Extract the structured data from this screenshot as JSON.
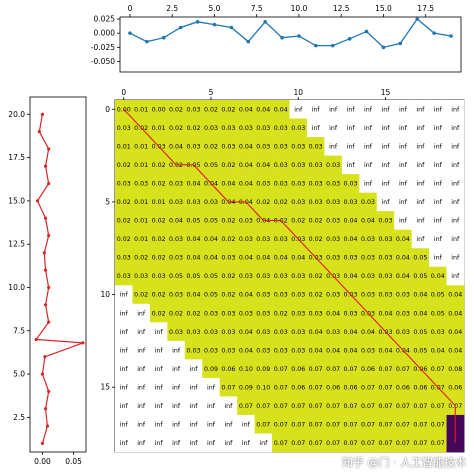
{
  "watermark": "知乎 @门 · 人工智能技术",
  "chart_data": [
    {
      "name": "top-series",
      "type": "line",
      "x": [
        0,
        1,
        2,
        3,
        4,
        5,
        6,
        7,
        8,
        9,
        10,
        11,
        12,
        13,
        14,
        15,
        16,
        17,
        18,
        19
      ],
      "y": [
        0.0,
        -0.015,
        -0.008,
        0.01,
        0.02,
        0.015,
        0.01,
        -0.015,
        0.02,
        -0.008,
        -0.005,
        -0.022,
        -0.022,
        -0.01,
        0.003,
        -0.025,
        -0.018,
        0.025,
        0.0,
        -0.005
      ],
      "xlim": [
        0,
        19
      ],
      "ylim": [
        -0.065,
        0.025
      ],
      "xticks": [
        0,
        2.5,
        5.0,
        7.5,
        10.0,
        12.5,
        15.0,
        17.5
      ],
      "yticks": [
        0.025,
        0.0,
        -0.025,
        -0.05
      ],
      "color": "#1f77b4"
    },
    {
      "name": "left-series",
      "type": "line",
      "x": [
        0.0,
        0.008,
        0.005,
        0.01,
        0.0,
        0.004,
        0.065,
        -0.01,
        0.01,
        0.005,
        0.01,
        0.005,
        0.003,
        0.01,
        0.005,
        -0.008,
        0.01,
        0.005,
        0.01,
        -0.005,
        0.0
      ],
      "y": [
        1,
        2,
        3,
        4,
        5,
        6,
        6.8,
        7,
        8,
        9,
        10,
        11,
        12,
        13,
        14,
        15,
        16,
        17,
        18,
        19,
        20
      ],
      "ylim": [
        0.5,
        21
      ],
      "xlim": [
        -0.02,
        0.07
      ],
      "yticks": [
        2.5,
        5.0,
        7.5,
        10.0,
        12.5,
        15.0,
        17.5,
        20.0
      ],
      "xticks": [
        0.0,
        0.05
      ],
      "xtick_labels": [
        "0.00",
        "0.05"
      ],
      "color": "#d62728"
    },
    {
      "name": "cost-matrix",
      "type": "heatmap",
      "rows": 19,
      "cols": 20,
      "xticks": [
        0,
        5,
        10,
        15
      ],
      "yticks": [
        0,
        5,
        10,
        15
      ],
      "colors": {
        "low": "#d7e21c",
        "dark": "#44085a",
        "inf": "#ffffff"
      },
      "row_labels": [
        [
          "0.00",
          "0.01",
          "0.00",
          "0.02",
          "0.03",
          "0.02",
          "0.02",
          "0.04",
          "0.04",
          "0.04",
          "inf",
          "inf",
          "inf",
          "inf",
          "inf",
          "inf",
          "inf",
          "inf",
          "inf",
          "inf"
        ],
        [
          "0.03",
          "0.02",
          "0.01",
          "0.02",
          "0.02",
          "0.03",
          "0.03",
          "0.03",
          "0.03",
          "0.03",
          "0.03",
          "inf",
          "inf",
          "inf",
          "inf",
          "inf",
          "inf",
          "inf",
          "inf",
          "inf"
        ],
        [
          "0.01",
          "0.01",
          "0.03",
          "0.04",
          "0.03",
          "0.02",
          "0.03",
          "0.04",
          "0.03",
          "0.03",
          "0.03",
          "0.03",
          "inf",
          "inf",
          "inf",
          "inf",
          "inf",
          "inf",
          "inf",
          "inf"
        ],
        [
          "0.02",
          "0.01",
          "0.02",
          "0.02",
          "0.05",
          "0.05",
          "0.02",
          "0.04",
          "0.04",
          "0.03",
          "0.03",
          "0.03",
          "0.03",
          "inf",
          "inf",
          "inf",
          "inf",
          "inf",
          "inf",
          "inf"
        ],
        [
          "0.03",
          "0.03",
          "0.02",
          "0.03",
          "0.04",
          "0.04",
          "0.04",
          "0.04",
          "0.03",
          "0.03",
          "0.03",
          "0.03",
          "0.03",
          "0.03",
          "inf",
          "inf",
          "inf",
          "inf",
          "inf",
          "inf"
        ],
        [
          "0.02",
          "0.01",
          "0.01",
          "0.03",
          "0.03",
          "0.03",
          "0.04",
          "0.04",
          "0.02",
          "0.02",
          "0.03",
          "0.03",
          "0.03",
          "0.03",
          "0.03",
          "inf",
          "inf",
          "inf",
          "inf",
          "inf"
        ],
        [
          "0.02",
          "0.01",
          "0.02",
          "0.04",
          "0.05",
          "0.05",
          "0.02",
          "0.03",
          "0.04",
          "0.02",
          "0.02",
          "0.02",
          "0.03",
          "0.04",
          "0.04",
          "0.03",
          "inf",
          "inf",
          "inf",
          "inf"
        ],
        [
          "0.02",
          "0.01",
          "0.02",
          "0.03",
          "0.04",
          "0.04",
          "0.02",
          "0.03",
          "0.03",
          "0.03",
          "0.03",
          "0.02",
          "0.03",
          "0.04",
          "0.03",
          "0.03",
          "0.04",
          "inf",
          "inf",
          "inf"
        ],
        [
          "0.03",
          "0.02",
          "0.02",
          "0.03",
          "0.04",
          "0.04",
          "0.03",
          "0.04",
          "0.04",
          "0.04",
          "0.04",
          "0.03",
          "0.03",
          "0.03",
          "0.03",
          "0.03",
          "0.04",
          "0.05",
          "inf",
          "inf"
        ],
        [
          "0.03",
          "0.03",
          "0.03",
          "0.05",
          "0.05",
          "0.05",
          "0.02",
          "0.03",
          "0.03",
          "0.03",
          "0.03",
          "0.02",
          "0.03",
          "0.04",
          "0.03",
          "0.03",
          "0.04",
          "0.05",
          "0.04",
          "inf"
        ],
        [
          "inf",
          "0.02",
          "0.02",
          "0.03",
          "0.04",
          "0.05",
          "0.02",
          "0.04",
          "0.03",
          "0.03",
          "0.03",
          "0.02",
          "0.03",
          "0.03",
          "0.03",
          "0.03",
          "0.03",
          "0.04",
          "0.05",
          "0.04"
        ],
        [
          "inf",
          "inf",
          "0.02",
          "0.02",
          "0.02",
          "0.03",
          "0.03",
          "0.03",
          "0.03",
          "0.02",
          "0.03",
          "0.03",
          "0.04",
          "0.03",
          "0.03",
          "0.04",
          "0.03",
          "0.04",
          "0.05",
          "0.04"
        ],
        [
          "inf",
          "inf",
          "inf",
          "0.03",
          "0.03",
          "0.03",
          "0.03",
          "0.04",
          "0.03",
          "0.03",
          "0.03",
          "0.04",
          "0.03",
          "0.04",
          "0.04",
          "0.03",
          "0.03",
          "0.05",
          "0.03",
          "0.04"
        ],
        [
          "inf",
          "inf",
          "inf",
          "inf",
          "0.03",
          "0.03",
          "0.03",
          "0.04",
          "0.03",
          "0.03",
          "0.03",
          "0.04",
          "0.04",
          "0.04",
          "0.03",
          "0.04",
          "0.04",
          "0.05",
          "0.04",
          "0.04"
        ],
        [
          "inf",
          "inf",
          "inf",
          "inf",
          "inf",
          "0.09",
          "0.06",
          "0.10",
          "0.09",
          "0.07",
          "0.06",
          "0.07",
          "0.07",
          "0.07",
          "0.06",
          "0.07",
          "0.07",
          "0.06",
          "0.07",
          "0.08"
        ],
        [
          "inf",
          "inf",
          "inf",
          "inf",
          "inf",
          "inf",
          "0.07",
          "0.09",
          "0.10",
          "0.07",
          "0.06",
          "0.07",
          "0.06",
          "0.06",
          "0.07",
          "0.07",
          "0.06",
          "0.06",
          "0.07",
          "0.06"
        ],
        [
          "inf",
          "inf",
          "inf",
          "inf",
          "inf",
          "inf",
          "inf",
          "0.07",
          "0.07",
          "0.07",
          "0.07",
          "0.07",
          "0.07",
          "0.07",
          "0.07",
          "0.07",
          "0.07",
          "0.07",
          "0.07",
          "0.07"
        ],
        [
          "inf",
          "inf",
          "inf",
          "inf",
          "inf",
          "inf",
          "inf",
          "inf",
          "0.07",
          "0.07",
          "0.07",
          "0.07",
          "0.07",
          "0.07",
          "0.07",
          "0.07",
          "0.07",
          "0.07",
          "0.07",
          "0.07"
        ],
        [
          "inf",
          "inf",
          "inf",
          "inf",
          "inf",
          "inf",
          "inf",
          "inf",
          "inf",
          "0.07",
          "0.07",
          "0.07",
          "0.07",
          "0.07",
          "0.07",
          "0.07",
          "0.07",
          "0.07",
          "0.07",
          "0.07"
        ]
      ],
      "path": [
        [
          0,
          0
        ],
        [
          1,
          1
        ],
        [
          2,
          2
        ],
        [
          3,
          3
        ],
        [
          3,
          4
        ],
        [
          4,
          5
        ],
        [
          5,
          6
        ],
        [
          5,
          7
        ],
        [
          6,
          8
        ],
        [
          6,
          9
        ],
        [
          7,
          10
        ],
        [
          8,
          11
        ],
        [
          9,
          12
        ],
        [
          10,
          13
        ],
        [
          11,
          14
        ],
        [
          12,
          15
        ],
        [
          13,
          16
        ],
        [
          14,
          17
        ],
        [
          15,
          18
        ],
        [
          16,
          19
        ],
        [
          17,
          19
        ],
        [
          18,
          19
        ]
      ],
      "path_color": "#e31a1c"
    }
  ]
}
